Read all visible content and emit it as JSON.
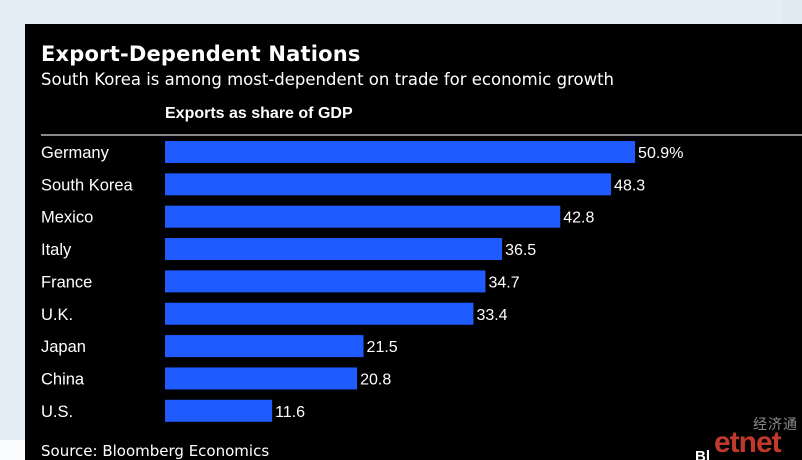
{
  "header": {
    "title": "Export-Dependent Nations",
    "subtitle": "South Korea is among most-dependent on trade for economic growth",
    "section_label": "Exports as share of GDP"
  },
  "footer": {
    "source": "Source: Bloomberg Economics",
    "brand_fragment": "Bl"
  },
  "watermark": {
    "cn": "经济通",
    "en": "etnet"
  },
  "colors": {
    "bar": "#1f5bff",
    "background": "#000000",
    "text": "#ffffff",
    "watermark": "#c0392b"
  },
  "chart_data": {
    "type": "bar",
    "orientation": "horizontal",
    "title": "Export-Dependent Nations",
    "subtitle": "South Korea is among most-dependent on trade for economic growth",
    "xlabel": "Exports as share of GDP",
    "ylabel": "",
    "xlim": [
      0,
      52
    ],
    "grid": false,
    "categories": [
      "Germany",
      "South Korea",
      "Mexico",
      "Italy",
      "France",
      "U.K.",
      "Japan",
      "China",
      "U.S."
    ],
    "values": [
      50.9,
      48.3,
      42.8,
      36.5,
      34.7,
      33.4,
      21.5,
      20.8,
      11.6
    ],
    "value_labels": [
      "50.9%",
      "48.3",
      "42.8",
      "36.5",
      "34.7",
      "33.4",
      "21.5",
      "20.8",
      "11.6"
    ]
  }
}
